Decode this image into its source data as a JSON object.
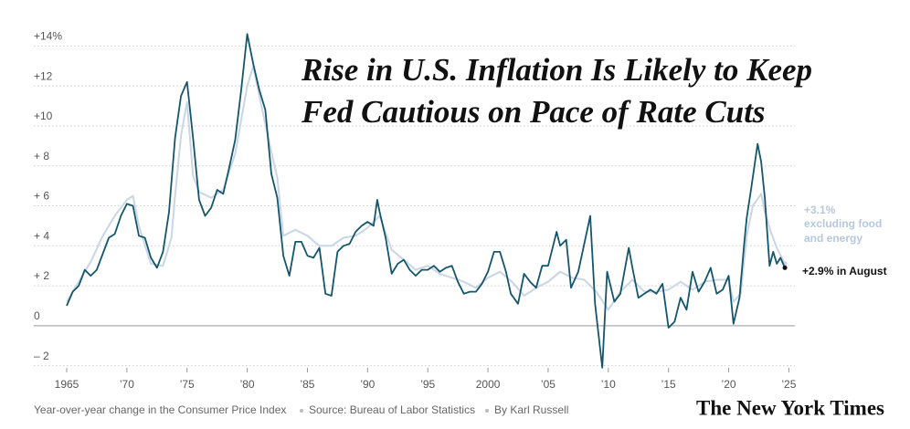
{
  "chart_data": {
    "type": "line",
    "title": [
      "Rise in U.S. Inflation Is Likely to Keep",
      "Fed Cautious on Pace of Rate Cuts"
    ],
    "footer": [
      "Year-over-year change in the Consumer Price Index",
      "Source: Bureau of Labor Statistics",
      "By Karl Russell"
    ],
    "logo": "The New York Times",
    "annotations": {
      "core": [
        "+3.1%",
        "excluding food",
        "and energy"
      ],
      "headline": "+2.9% in August"
    },
    "xlim": [
      1965,
      2025.5
    ],
    "ylim": [
      -2.2,
      15
    ],
    "grid": true,
    "xticks": [
      {
        "value": 1965,
        "label": "1965"
      },
      {
        "value": 1970,
        "label": "’70"
      },
      {
        "value": 1975,
        "label": "’75"
      },
      {
        "value": 1980,
        "label": "’80"
      },
      {
        "value": 1985,
        "label": "’85"
      },
      {
        "value": 1990,
        "label": "’90"
      },
      {
        "value": 1995,
        "label": "’95"
      },
      {
        "value": 2000,
        "label": "2000"
      },
      {
        "value": 2005,
        "label": "’05"
      },
      {
        "value": 2010,
        "label": "’10"
      },
      {
        "value": 2015,
        "label": "’15"
      },
      {
        "value": 2020,
        "label": "’20"
      },
      {
        "value": 2025,
        "label": "’25"
      }
    ],
    "yticks": [
      {
        "value": 14,
        "label": "+14%"
      },
      {
        "value": 12,
        "label": "+12"
      },
      {
        "value": 10,
        "label": "+10"
      },
      {
        "value": 8,
        "label": "+ 8"
      },
      {
        "value": 6,
        "label": "+ 6"
      },
      {
        "value": 4,
        "label": "+ 4"
      },
      {
        "value": 2,
        "label": "+ 2"
      },
      0,
      {
        "value": -2,
        "label": "– 2"
      }
    ],
    "series": [
      {
        "color": "#c9d6e6",
        "x": [
          1965,
          1966,
          1967,
          1968,
          1969,
          1970,
          1970.5,
          1971,
          1972,
          1973,
          1973.7,
          1974,
          1974.5,
          1975,
          1975.5,
          1976,
          1977,
          1978,
          1979,
          1980,
          1980.5,
          1981,
          1982,
          1982.5,
          1983,
          1984,
          1985,
          1986,
          1987,
          1988,
          1989,
          1990,
          1991,
          1992,
          1993,
          1994,
          1995,
          1996,
          1997,
          1998,
          1999,
          2000,
          2001,
          2002,
          2003,
          2004,
          2005,
          2006,
          2007,
          2008,
          2009,
          2010,
          2011,
          2012,
          2013,
          2014,
          2015,
          2016,
          2017,
          2018,
          2019,
          2020,
          2020.4,
          2021,
          2021.5,
          2022,
          2022.7,
          2023,
          2023.5,
          2024,
          2024.67
        ],
        "values": [
          1.2,
          2.2,
          3.2,
          4.5,
          5.5,
          6.3,
          6.5,
          5.0,
          3.1,
          3.0,
          4.4,
          6.5,
          9.5,
          11.2,
          7.5,
          6.7,
          6.4,
          6.8,
          8.6,
          12.0,
          13.0,
          11.5,
          8.7,
          7.4,
          4.5,
          4.8,
          4.5,
          4.0,
          4.0,
          4.4,
          4.5,
          4.9,
          5.5,
          3.8,
          3.3,
          2.8,
          3.0,
          2.6,
          2.4,
          2.2,
          1.9,
          2.4,
          2.7,
          2.2,
          1.5,
          1.9,
          2.2,
          2.7,
          2.4,
          2.3,
          1.7,
          0.8,
          1.7,
          2.3,
          1.7,
          1.7,
          1.8,
          2.2,
          1.8,
          2.2,
          2.3,
          2.3,
          1.2,
          1.6,
          4.5,
          6.0,
          6.6,
          5.7,
          4.7,
          3.9,
          3.1
        ]
      },
      {
        "color": "#14566b",
        "x": [
          1965,
          1965.5,
          1966,
          1966.5,
          1967,
          1967.5,
          1968,
          1968.5,
          1969,
          1969.5,
          1970,
          1970.5,
          1971,
          1971.5,
          1972,
          1972.5,
          1973,
          1973.5,
          1974,
          1974.5,
          1975,
          1975.5,
          1976,
          1976.5,
          1977,
          1977.5,
          1978,
          1978.5,
          1979,
          1979.5,
          1980,
          1980.5,
          1981,
          1981.5,
          1982,
          1982.5,
          1983,
          1983.5,
          1984,
          1984.5,
          1985,
          1985.5,
          1986,
          1986.5,
          1987,
          1987.5,
          1988,
          1988.5,
          1989,
          1989.5,
          1990,
          1990.5,
          1990.8,
          1991,
          1991.5,
          1992,
          1992.5,
          1993,
          1993.5,
          1994,
          1994.5,
          1995,
          1995.5,
          1996,
          1996.5,
          1997,
          1997.5,
          1998,
          1998.5,
          1999,
          1999.5,
          2000,
          2000.5,
          2001,
          2001.5,
          2001.9,
          2002.5,
          2003,
          2003.5,
          2004,
          2004.5,
          2005,
          2005.7,
          2006,
          2006.5,
          2006.9,
          2007.5,
          2008,
          2008.5,
          2008.9,
          2009.5,
          2009.9,
          2010.5,
          2011,
          2011.7,
          2012,
          2012.5,
          2013,
          2013.5,
          2014,
          2014.5,
          2015,
          2015.5,
          2016,
          2016.5,
          2017,
          2017.5,
          2018,
          2018.5,
          2019,
          2019.5,
          2020,
          2020.4,
          2020.9,
          2021.3,
          2021.5,
          2021.9,
          2022.4,
          2022.7,
          2023,
          2023.4,
          2023.7,
          2024,
          2024.3,
          2024.67
        ],
        "values": [
          1.0,
          1.7,
          2.0,
          2.8,
          2.5,
          2.8,
          3.6,
          4.4,
          4.6,
          5.5,
          6.1,
          6.0,
          4.5,
          4.4,
          3.4,
          2.9,
          3.7,
          5.7,
          9.4,
          11.5,
          12.2,
          9.4,
          6.3,
          5.5,
          5.9,
          6.8,
          6.6,
          7.9,
          9.3,
          11.8,
          14.6,
          13.1,
          11.8,
          10.8,
          7.6,
          6.4,
          3.5,
          2.5,
          4.2,
          4.2,
          3.5,
          3.4,
          3.9,
          1.6,
          1.5,
          3.7,
          4.0,
          4.1,
          4.7,
          5.0,
          5.2,
          5.0,
          6.3,
          5.7,
          4.4,
          2.6,
          3.1,
          3.3,
          2.8,
          2.5,
          2.8,
          2.8,
          3.0,
          2.7,
          2.9,
          3.0,
          2.2,
          1.6,
          1.7,
          1.7,
          2.1,
          2.7,
          3.7,
          3.7,
          2.7,
          1.6,
          1.1,
          2.6,
          2.2,
          1.9,
          3.0,
          3.0,
          4.7,
          4.0,
          4.3,
          1.9,
          2.7,
          4.1,
          5.5,
          1.1,
          -2.1,
          2.7,
          1.2,
          1.6,
          3.9,
          2.9,
          1.4,
          1.6,
          1.8,
          1.6,
          2.1,
          -0.1,
          0.2,
          1.4,
          0.8,
          2.7,
          1.7,
          2.2,
          2.9,
          1.6,
          1.8,
          2.5,
          0.1,
          1.4,
          4.2,
          5.4,
          7.0,
          9.1,
          8.2,
          6.4,
          3.0,
          3.7,
          3.1,
          3.4,
          2.9
        ]
      }
    ]
  }
}
